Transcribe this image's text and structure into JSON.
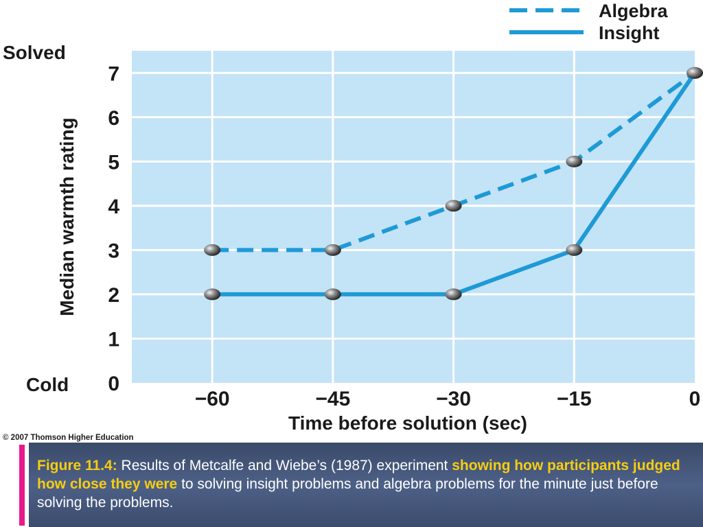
{
  "chart_data": {
    "type": "line",
    "x": [
      -60,
      -45,
      -30,
      -15,
      0
    ],
    "x_tick_labels": [
      "−60",
      "−45",
      "−30",
      "−15",
      "0"
    ],
    "xlabel": "Time before solution (sec)",
    "ylabel": "Median warmth rating",
    "y_ticks": [
      0,
      1,
      2,
      3,
      4,
      5,
      6,
      7
    ],
    "y_end_labels": {
      "top": "Solved",
      "bottom": "Cold"
    },
    "xlim": [
      -70,
      0
    ],
    "ylim": [
      0,
      7.5
    ],
    "grid": true,
    "legend_position": "top-right",
    "series": [
      {
        "name": "Algebra",
        "style": "dashed",
        "color": "#1e9ad6",
        "values": [
          3,
          3,
          4,
          5,
          7
        ]
      },
      {
        "name": "Insight",
        "style": "solid",
        "color": "#1e9ad6",
        "values": [
          2,
          2,
          2,
          3,
          7
        ]
      }
    ],
    "plot_background": "#c3e3f7",
    "grid_color": "#ffffff",
    "marker_color": "#7a7a7a"
  },
  "copyright": "© 2007 Thomson Higher Education",
  "caption": {
    "label": "Figure 11.4:",
    "text1": " Results of Metcalfe and Wiebe’s (1987) experiment ",
    "highlight": "showing how participants judged how close they were",
    "text2": " to solving insight problems and algebra problems for the minute just before solving the problems."
  },
  "colors": {
    "caption_bg": "#445679",
    "caption_accent_bar": "#e8198b",
    "caption_highlight": "#f6cd13"
  }
}
